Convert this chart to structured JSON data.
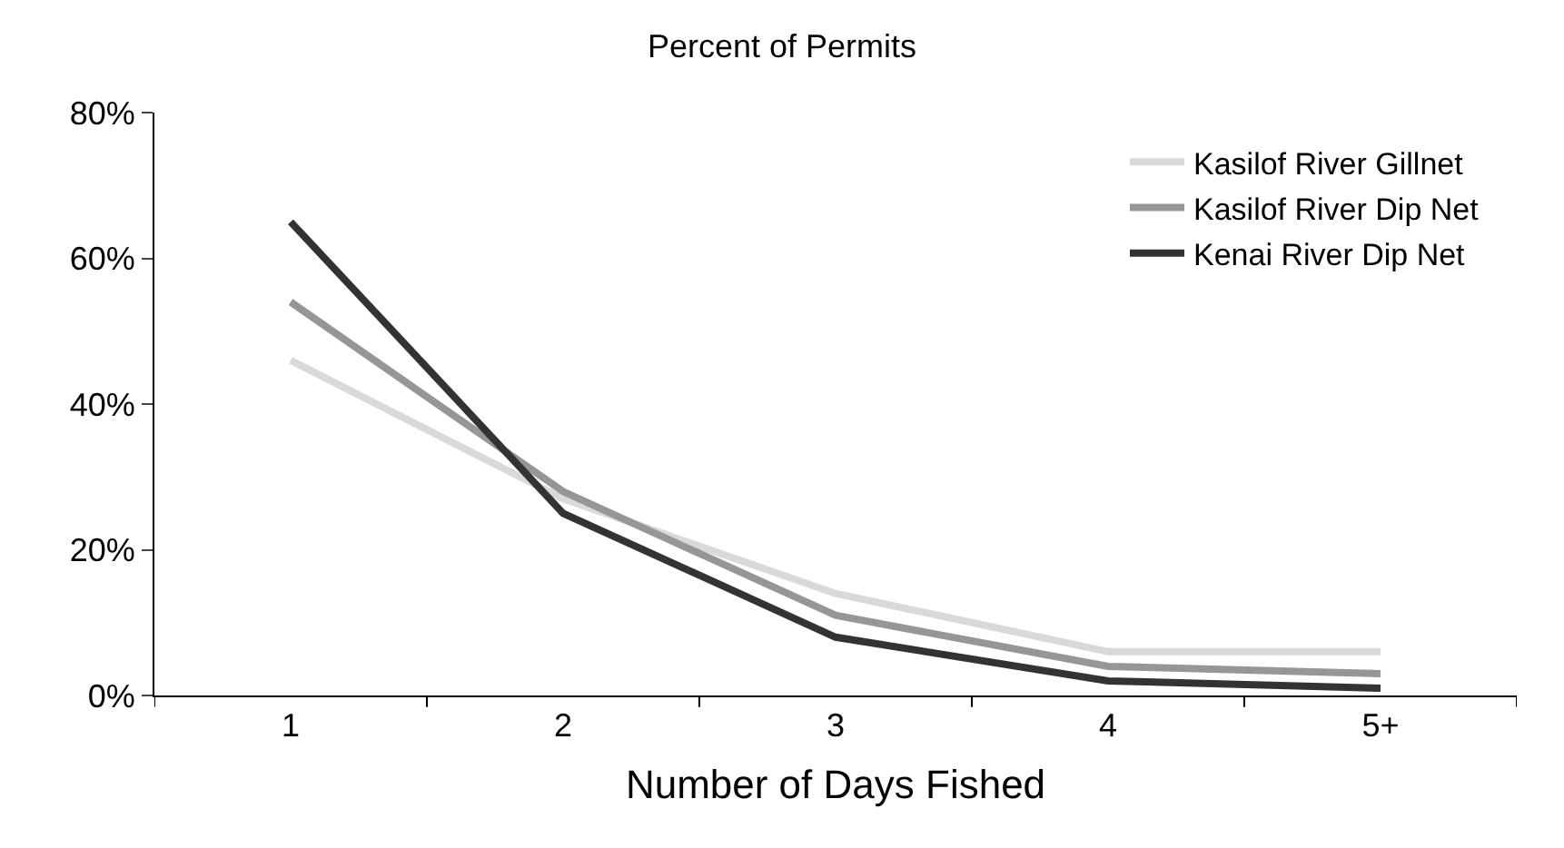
{
  "chart_data": {
    "type": "line",
    "title": "Percent of Permits",
    "xlabel": "Number of Days Fished",
    "categories": [
      "1",
      "2",
      "3",
      "4",
      "5+"
    ],
    "series": [
      {
        "name": "Kasilof River Gillnet",
        "color": "#d9d9d9",
        "values": [
          46,
          27,
          14,
          6,
          6
        ]
      },
      {
        "name": "Kasilof River Dip Net",
        "color": "#969696",
        "values": [
          54,
          28,
          11,
          4,
          3
        ]
      },
      {
        "name": "Kenai River Dip Net",
        "color": "#333333",
        "values": [
          65,
          25,
          8,
          2,
          1
        ]
      }
    ],
    "ylim": [
      0,
      80
    ],
    "yticks": [
      {
        "value": 0,
        "label": "0%"
      },
      {
        "value": 20,
        "label": "20%"
      },
      {
        "value": 40,
        "label": "40%"
      },
      {
        "value": 60,
        "label": "60%"
      },
      {
        "value": 80,
        "label": "80%"
      }
    ],
    "grid": false,
    "legend": "top right",
    "marker": "none",
    "line_style": "solid"
  }
}
